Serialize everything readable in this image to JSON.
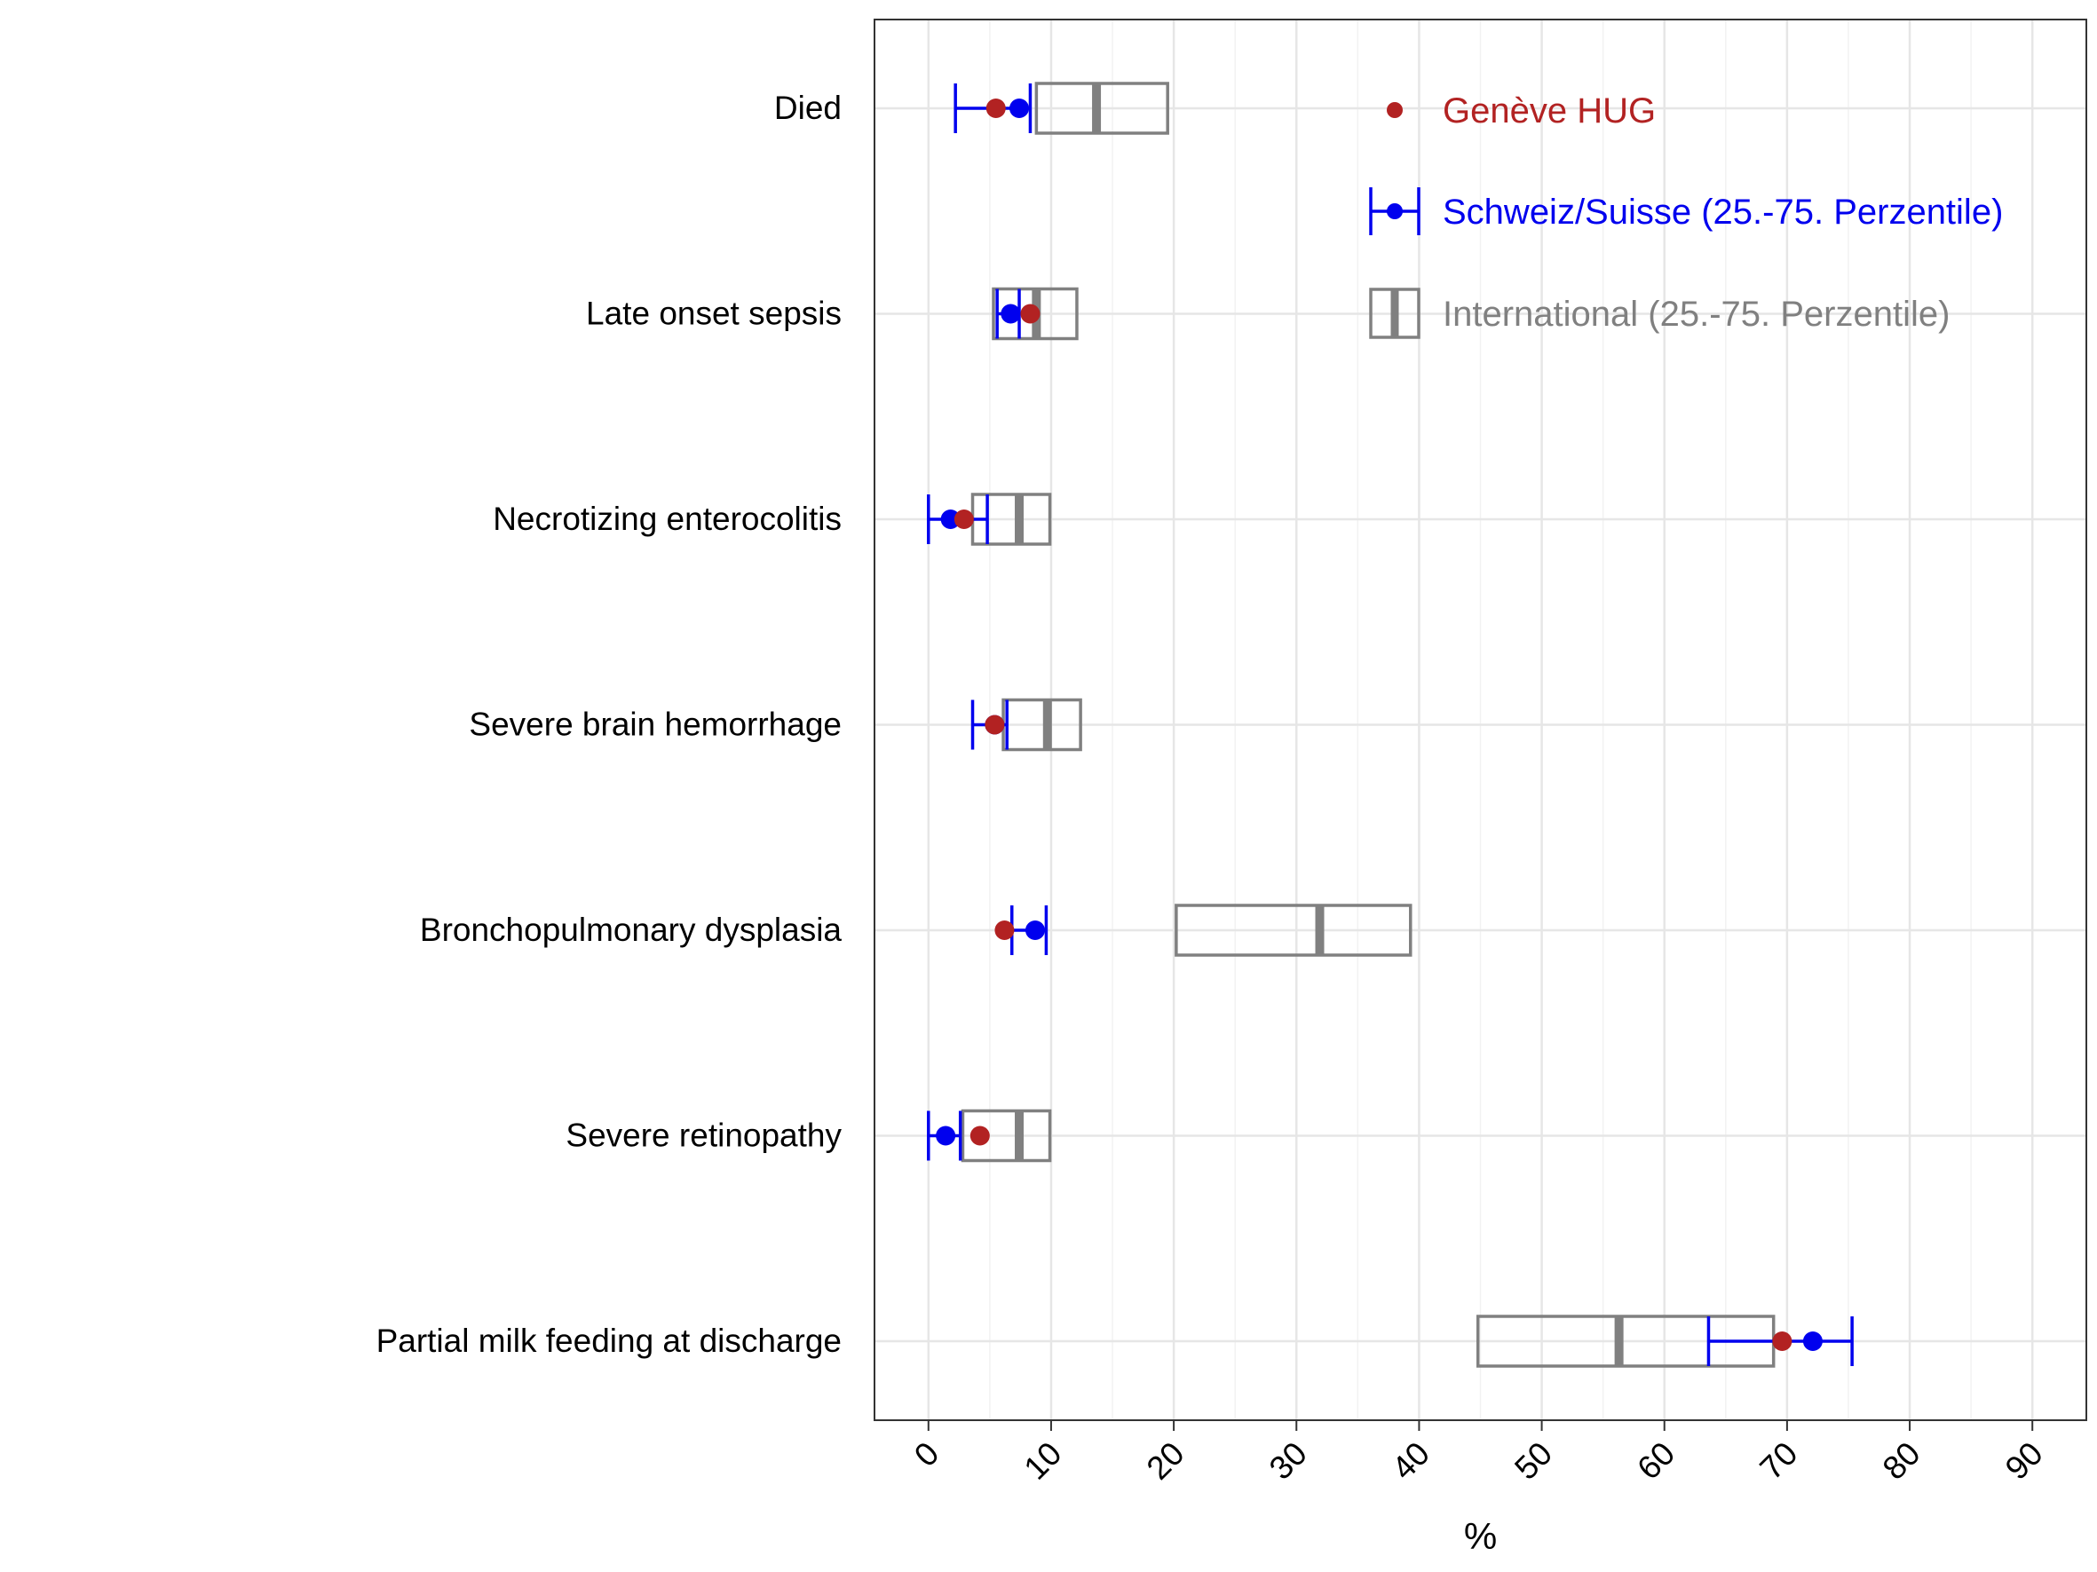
{
  "chart_data": {
    "type": "scatter",
    "xlabel": "%",
    "ylabel": "",
    "title": "",
    "xlim": [
      -4.4,
      94.4
    ],
    "xticks": [
      0,
      10,
      20,
      30,
      40,
      50,
      60,
      70,
      80,
      90
    ],
    "grid": true,
    "legend_position": "top-right",
    "categories": [
      "Died",
      "Late onset sepsis",
      "Necrotizing enterocolitis",
      "Severe brain hemorrhage",
      "Bronchopulmonary dysplasia",
      "Severe retinopathy",
      "Partial milk feeding at discharge"
    ],
    "series": [
      {
        "name": "Genève HUG",
        "color": "#b22222",
        "values": [
          5.5,
          8.3,
          2.9,
          5.4,
          6.2,
          4.2,
          69.6
        ]
      },
      {
        "name": "Schweiz/Suisse (25.-75. Perzentile)",
        "color": "#0000ee",
        "values": [
          7.4,
          6.7,
          1.8,
          5.4,
          8.7,
          1.4,
          72.1
        ],
        "q1": [
          2.2,
          5.6,
          0.0,
          3.6,
          6.8,
          0.0,
          63.6
        ],
        "q3": [
          8.3,
          7.4,
          4.8,
          6.4,
          9.6,
          2.6,
          75.3
        ]
      },
      {
        "name": "International (25.-75. Perzentile)",
        "color": "#808080",
        "median": [
          13.7,
          8.8,
          7.4,
          9.7,
          31.9,
          7.4,
          56.3
        ],
        "q1": [
          8.8,
          5.3,
          3.6,
          6.1,
          20.2,
          2.8,
          44.8
        ],
        "q3": [
          19.5,
          12.1,
          9.9,
          12.4,
          39.3,
          9.9,
          68.9
        ]
      }
    ]
  }
}
